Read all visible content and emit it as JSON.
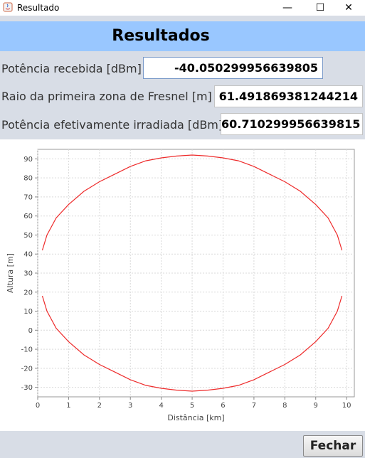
{
  "window": {
    "title": "Resultado",
    "min_glyph": "—",
    "max_glyph": "☐",
    "close_glyph": "✕"
  },
  "header": {
    "title": "Resultados"
  },
  "fields": [
    {
      "label": "Potência recebida [dBm]",
      "value": "-40.050299956639805"
    },
    {
      "label": "Raio da primeira zona de Fresnel [m]",
      "value": "61.491869381244214"
    },
    {
      "label": "Potência efetivamente irradiada [dBm]",
      "value": "60.710299956639815"
    }
  ],
  "button": {
    "label": "Fechar"
  },
  "colors": {
    "header_bg": "#99c7ff",
    "line": "#ee2b2b"
  },
  "chart_data": {
    "type": "line",
    "xlabel": "Distância [km]",
    "ylabel": "Altura [m]",
    "xlim": [
      0,
      10.25
    ],
    "ylim": [
      -35,
      95
    ],
    "xticks": [
      0,
      1,
      2,
      3,
      4,
      5,
      6,
      7,
      8,
      9,
      10
    ],
    "yticks": [
      -30,
      -20,
      -10,
      0,
      10,
      20,
      30,
      40,
      50,
      60,
      70,
      80,
      90
    ],
    "grid": true,
    "series": [
      {
        "x": [
          0.15,
          0.3,
          0.6,
          1,
          1.5,
          2,
          2.5,
          3,
          3.5,
          4,
          4.5,
          5,
          5.5,
          6,
          6.5,
          7,
          7.5,
          8,
          8.5,
          9,
          9.4,
          9.7,
          9.85
        ],
        "y": [
          42,
          50,
          59,
          66,
          73,
          78,
          82,
          86,
          89,
          90.5,
          91.5,
          92,
          91.5,
          90.5,
          89,
          86,
          82,
          78,
          73,
          66,
          59,
          50,
          42
        ]
      },
      {
        "x": [
          0.15,
          0.3,
          0.6,
          1,
          1.5,
          2,
          2.5,
          3,
          3.5,
          4,
          4.5,
          5,
          5.5,
          6,
          6.5,
          7,
          7.5,
          8,
          8.5,
          9,
          9.4,
          9.7,
          9.85
        ],
        "y": [
          18,
          10,
          1,
          -6,
          -13,
          -18,
          -22,
          -26,
          -29,
          -30.5,
          -31.5,
          -32,
          -31.5,
          -30.5,
          -29,
          -26,
          -22,
          -18,
          -13,
          -6,
          1,
          10,
          18
        ]
      }
    ]
  }
}
